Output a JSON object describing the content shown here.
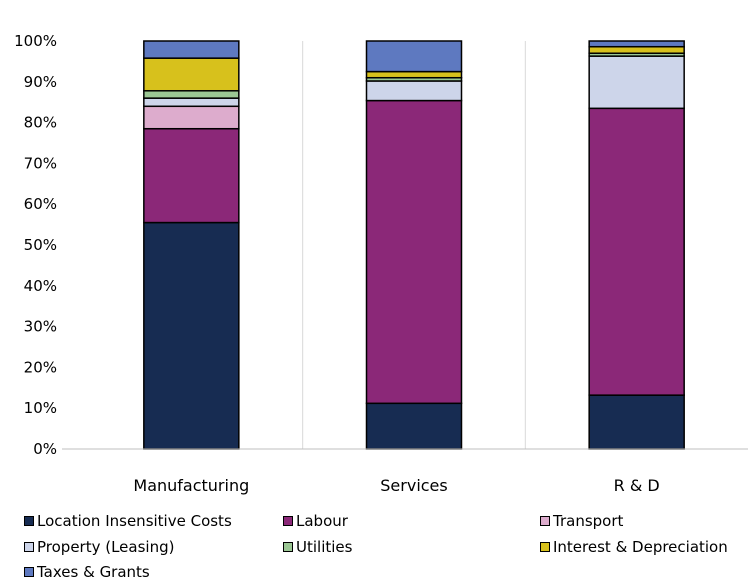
{
  "chart_data": {
    "type": "bar",
    "stacked": true,
    "categories": [
      "Manufacturing",
      "Services",
      "R & D"
    ],
    "ylim": [
      0,
      100
    ],
    "yticks": [
      "0%",
      "10%",
      "20%",
      "30%",
      "40%",
      "50%",
      "60%",
      "70%",
      "80%",
      "90%",
      "100%"
    ],
    "grid": "vertical",
    "legend_position": "bottom",
    "series": [
      {
        "name": "Location Insensitive Costs",
        "color": "#172c52",
        "values": [
          55.5,
          11.2,
          13.2
        ]
      },
      {
        "name": "Labour",
        "color": "#8b2878",
        "values": [
          23.0,
          74.2,
          70.3
        ]
      },
      {
        "name": "Transport",
        "color": "#ddaccd",
        "values": [
          5.5,
          0,
          0
        ]
      },
      {
        "name": "Property (Leasing)",
        "color": "#cdd5ea",
        "values": [
          2.0,
          4.8,
          12.8
        ]
      },
      {
        "name": "Utilities",
        "color": "#9bc794",
        "values": [
          1.8,
          0.8,
          0.7
        ]
      },
      {
        "name": "Interest & Depreciation",
        "color": "#d7c11c",
        "values": [
          8.0,
          1.5,
          1.6
        ]
      },
      {
        "name": "Taxes & Grants",
        "color": "#5e79c0",
        "values": [
          4.2,
          7.5,
          1.4
        ]
      }
    ]
  }
}
